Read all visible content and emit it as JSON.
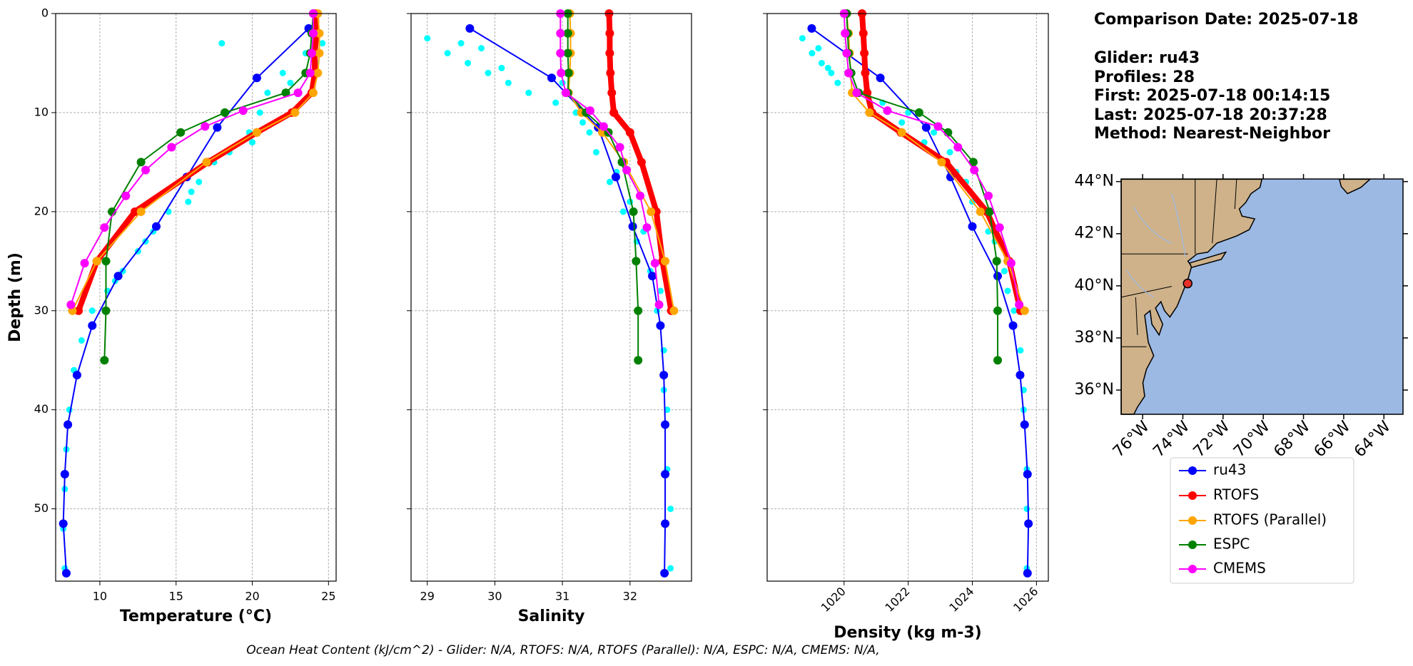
{
  "chart_data": [
    {
      "type": "profile",
      "xlabel": "Temperature (°C)",
      "ylabel": "Depth (m)",
      "xlim": [
        7.1,
        25.5
      ],
      "ylim": [
        57.3,
        0
      ],
      "xticks": [
        10,
        15,
        20,
        25
      ],
      "yticks": [
        0,
        10,
        20,
        30,
        40,
        50
      ],
      "grid": true,
      "series": [
        {
          "type": "scatter",
          "color": "#00ffff",
          "x": [
            24.6,
            24.2,
            23.5,
            22.0,
            21.0,
            20.5,
            19.8,
            18.5,
            17.5,
            16.5,
            15.8,
            14.5,
            13.5,
            12.5,
            11.5,
            10.5,
            9.5,
            8.8,
            8.3,
            8.0,
            7.8,
            7.7,
            7.6,
            7.7,
            18.0,
            22.5,
            20.0,
            16.0,
            13.0,
            11.0
          ],
          "y": [
            3,
            5,
            4,
            6,
            8,
            10,
            12,
            14,
            15,
            17,
            19,
            20,
            22,
            24,
            26,
            28,
            30,
            33,
            36,
            40,
            44,
            48,
            52,
            56,
            3,
            7,
            13,
            18,
            23,
            27
          ]
        },
        {
          "name": "ru43",
          "color": "#0000ff",
          "linewidth": 2,
          "x": [
            23.7,
            20.3,
            17.7,
            15.7,
            13.7,
            11.2,
            9.5,
            8.5,
            7.9,
            7.7,
            7.6,
            7.8
          ],
          "y": [
            1.5,
            6.5,
            11.5,
            16.5,
            21.5,
            26.5,
            31.5,
            36.5,
            41.5,
            46.5,
            51.5,
            56.5
          ]
        },
        {
          "name": "RTOFS",
          "color": "#ff0000",
          "linewidth": 8,
          "x": [
            24.2,
            24.2,
            24.1,
            24.1,
            23.9,
            22.6,
            20.3,
            17.1,
            12.3,
            9.8,
            8.6
          ],
          "y": [
            0,
            2,
            4,
            6,
            8,
            10,
            12,
            15,
            20,
            25,
            30
          ]
        },
        {
          "name": "RTOFS (Parallel)",
          "color": "#ffa500",
          "linewidth": 2,
          "x": [
            24.3,
            24.4,
            24.4,
            24.3,
            24.0,
            22.8,
            20.3,
            17.0,
            12.7,
            9.8,
            8.2
          ],
          "y": [
            0,
            2,
            4,
            6,
            8,
            10,
            12,
            15,
            20,
            25,
            30
          ]
        },
        {
          "name": "ESPC",
          "color": "#008000",
          "linewidth": 2,
          "x": [
            24.0,
            23.9,
            23.8,
            23.5,
            22.2,
            18.2,
            15.3,
            12.7,
            10.8,
            10.4,
            10.4,
            10.3
          ],
          "y": [
            0,
            2,
            4,
            6,
            8,
            10,
            12,
            15,
            20,
            25,
            30,
            35
          ]
        },
        {
          "name": "CMEMS",
          "color": "#ff00ff",
          "linewidth": 2,
          "x": [
            24.0,
            24.0,
            23.9,
            23.8,
            23.0,
            19.4,
            16.9,
            14.7,
            13.0,
            11.7,
            10.3,
            9.0,
            8.1
          ],
          "y": [
            0,
            2,
            4,
            6,
            8,
            9.8,
            11.4,
            13.5,
            15.8,
            18.4,
            21.6,
            25.2,
            29.4
          ]
        }
      ]
    },
    {
      "type": "profile",
      "xlabel": "Salinity",
      "sharey": true,
      "xlim": [
        28.76,
        32.91
      ],
      "ylim": [
        57.3,
        0
      ],
      "xticks": [
        29,
        30,
        31,
        32
      ],
      "yticks": [
        0,
        10,
        20,
        30,
        40,
        50
      ],
      "grid": true,
      "series": [
        {
          "type": "scatter",
          "color": "#00ffff",
          "x": [
            29.0,
            29.3,
            29.6,
            29.9,
            30.2,
            29.5,
            30.5,
            30.9,
            31.3,
            31.5,
            31.7,
            31.9,
            32.1,
            32.3,
            32.4,
            32.5,
            32.55,
            32.55,
            32.6,
            32.6,
            29.8,
            30.1,
            31.2,
            31.8,
            32.2,
            32.45,
            32.5,
            31.0,
            31.4,
            32.0
          ],
          "y": [
            2.5,
            4,
            5,
            6,
            7,
            3,
            8,
            9,
            11,
            14,
            17,
            20,
            23,
            26,
            30,
            34,
            40,
            46,
            50,
            56,
            3.5,
            5.5,
            10,
            16,
            22,
            28,
            38,
            7,
            12,
            19
          ]
        },
        {
          "color": "#0000ff",
          "linewidth": 2,
          "x": [
            29.63,
            30.84,
            31.53,
            31.79,
            32.04,
            32.33,
            32.45,
            32.5,
            32.52,
            32.52,
            32.52,
            32.51
          ],
          "y": [
            1.5,
            6.5,
            11.5,
            16.5,
            21.5,
            26.5,
            31.5,
            36.5,
            41.5,
            46.5,
            51.5,
            56.5
          ]
        },
        {
          "color": "#ff0000",
          "linewidth": 8,
          "x": [
            31.69,
            31.7,
            31.7,
            31.71,
            31.73,
            31.76,
            32.0,
            32.17,
            32.39,
            32.48,
            32.61
          ],
          "y": [
            0,
            2,
            4,
            6,
            8,
            10,
            12,
            15,
            20,
            25,
            30
          ]
        },
        {
          "color": "#ffa500",
          "linewidth": 2,
          "x": [
            31.11,
            31.12,
            31.12,
            31.11,
            31.09,
            31.28,
            31.59,
            31.91,
            32.31,
            32.52,
            32.65
          ],
          "y": [
            0,
            2,
            4,
            6,
            8,
            10,
            12,
            15,
            20,
            25,
            30
          ]
        },
        {
          "color": "#008000",
          "linewidth": 2,
          "x": [
            31.08,
            31.08,
            31.08,
            31.09,
            31.08,
            31.35,
            31.68,
            31.88,
            32.05,
            32.09,
            32.12,
            32.12
          ],
          "y": [
            0,
            2,
            4,
            6,
            8,
            10,
            12,
            15,
            20,
            25,
            30,
            35
          ]
        },
        {
          "color": "#ff00ff",
          "linewidth": 2,
          "x": [
            30.97,
            30.97,
            30.97,
            30.98,
            31.05,
            31.41,
            31.61,
            31.85,
            31.95,
            32.15,
            32.25,
            32.37,
            32.43
          ],
          "y": [
            0,
            2,
            4,
            6,
            8,
            9.8,
            11.4,
            13.5,
            15.8,
            18.4,
            21.6,
            25.2,
            29.4
          ]
        }
      ]
    },
    {
      "type": "profile",
      "xlabel": "Density (kg m-3)",
      "sharey": true,
      "xtick_rotation": 45,
      "xlim": [
        1017.6,
        1026.37
      ],
      "ylim": [
        57.3,
        0
      ],
      "xticks": [
        1020,
        1022,
        1024,
        1026
      ],
      "yticks": [
        0,
        10,
        20,
        30,
        40,
        50
      ],
      "grid": true,
      "series": [
        {
          "type": "scatter",
          "color": "#00ffff",
          "x": [
            1018.7,
            1019.0,
            1019.3,
            1019.6,
            1019.8,
            1020.5,
            1021.2,
            1022.0,
            1022.8,
            1023.3,
            1023.8,
            1024.3,
            1024.7,
            1025.0,
            1025.3,
            1025.5,
            1025.6,
            1025.7,
            1025.7,
            1025.7,
            1019.2,
            1019.5,
            1021.8,
            1023.5,
            1024.5,
            1025.1,
            1025.6,
            1020.8,
            1022.5,
            1024.0
          ],
          "y": [
            2.5,
            4,
            5,
            6,
            7,
            8,
            9,
            10,
            12,
            14,
            17,
            20,
            23,
            26,
            30,
            34,
            40,
            46,
            50,
            56,
            3.5,
            5.5,
            11,
            16,
            22,
            28,
            38,
            9,
            13,
            19
          ]
        },
        {
          "color": "#0000ff",
          "linewidth": 2,
          "x": [
            1018.99,
            1021.13,
            1022.56,
            1023.32,
            1024.0,
            1024.79,
            1025.27,
            1025.49,
            1025.63,
            1025.72,
            1025.75,
            1025.72
          ],
          "y": [
            1.5,
            6.5,
            11.5,
            16.5,
            21.5,
            26.5,
            31.5,
            36.5,
            41.5,
            46.5,
            51.5,
            56.5
          ]
        },
        {
          "color": "#ff0000",
          "linewidth": 8,
          "x": [
            1020.56,
            1020.6,
            1020.63,
            1020.66,
            1020.72,
            1020.87,
            1021.77,
            1023.18,
            1024.45,
            1025.15,
            1025.5
          ],
          "y": [
            0,
            2,
            4,
            6,
            8,
            10,
            12,
            15,
            20,
            25,
            30
          ]
        },
        {
          "color": "#ffa500",
          "linewidth": 2,
          "x": [
            1020.08,
            1020.14,
            1020.17,
            1020.2,
            1020.25,
            1020.79,
            1021.8,
            1023.04,
            1024.25,
            1025.1,
            1025.63
          ],
          "y": [
            0,
            2,
            4,
            6,
            8,
            10,
            12,
            15,
            20,
            25,
            30
          ]
        },
        {
          "color": "#008000",
          "linewidth": 2,
          "x": [
            1020.08,
            1020.11,
            1020.14,
            1020.22,
            1020.45,
            1022.34,
            1023.24,
            1024.03,
            1024.54,
            1024.76,
            1024.79,
            1024.79
          ],
          "y": [
            0,
            2,
            4,
            6,
            8,
            10,
            12,
            15,
            20,
            25,
            30,
            35
          ]
        },
        {
          "color": "#ff00ff",
          "linewidth": 2,
          "x": [
            1020.0,
            1020.03,
            1020.08,
            1020.14,
            1020.39,
            1021.35,
            1022.93,
            1023.55,
            1024.06,
            1024.5,
            1024.85,
            1025.21,
            1025.46
          ],
          "y": [
            0,
            2,
            4,
            6,
            8,
            9.8,
            11.4,
            13.5,
            15.8,
            18.4,
            21.6,
            25.2,
            29.4
          ]
        }
      ]
    },
    {
      "type": "map",
      "xlim": [
        -77.07,
        -63.05
      ],
      "ylim": [
        35.07,
        44.1
      ],
      "xtick_rotation": 45,
      "xticks": [
        {
          "value": -76,
          "label": "76°W"
        },
        {
          "value": -74,
          "label": "74°W"
        },
        {
          "value": -72,
          "label": "72°W"
        },
        {
          "value": -70,
          "label": "70°W"
        },
        {
          "value": -68,
          "label": "68°W"
        },
        {
          "value": -66,
          "label": "66°W"
        },
        {
          "value": -64,
          "label": "64°W"
        }
      ],
      "yticks": [
        {
          "value": 36,
          "label": "36°N"
        },
        {
          "value": 38,
          "label": "38°N"
        },
        {
          "value": 40,
          "label": "40°N"
        },
        {
          "value": 42,
          "label": "42°N"
        },
        {
          "value": 44,
          "label": "44°N"
        }
      ],
      "points": [
        {
          "x": -73.76,
          "y": 40.09,
          "color": "#e8302a"
        }
      ]
    }
  ],
  "info_lines": [
    "Comparison Date: 2025-07-18",
    "Glider: ru43",
    "Profiles: 28",
    "First: 2025-07-18 00:14:15",
    "Last: 2025-07-18 20:37:28",
    "Method: Nearest-Neighbor"
  ],
  "footer": "Ocean Heat Content (kJ/cm^2) - Glider: N/A,  RTOFS: N/A,  RTOFS (Parallel): N/A,  ESPC: N/A,  CMEMS: N/A,"
}
